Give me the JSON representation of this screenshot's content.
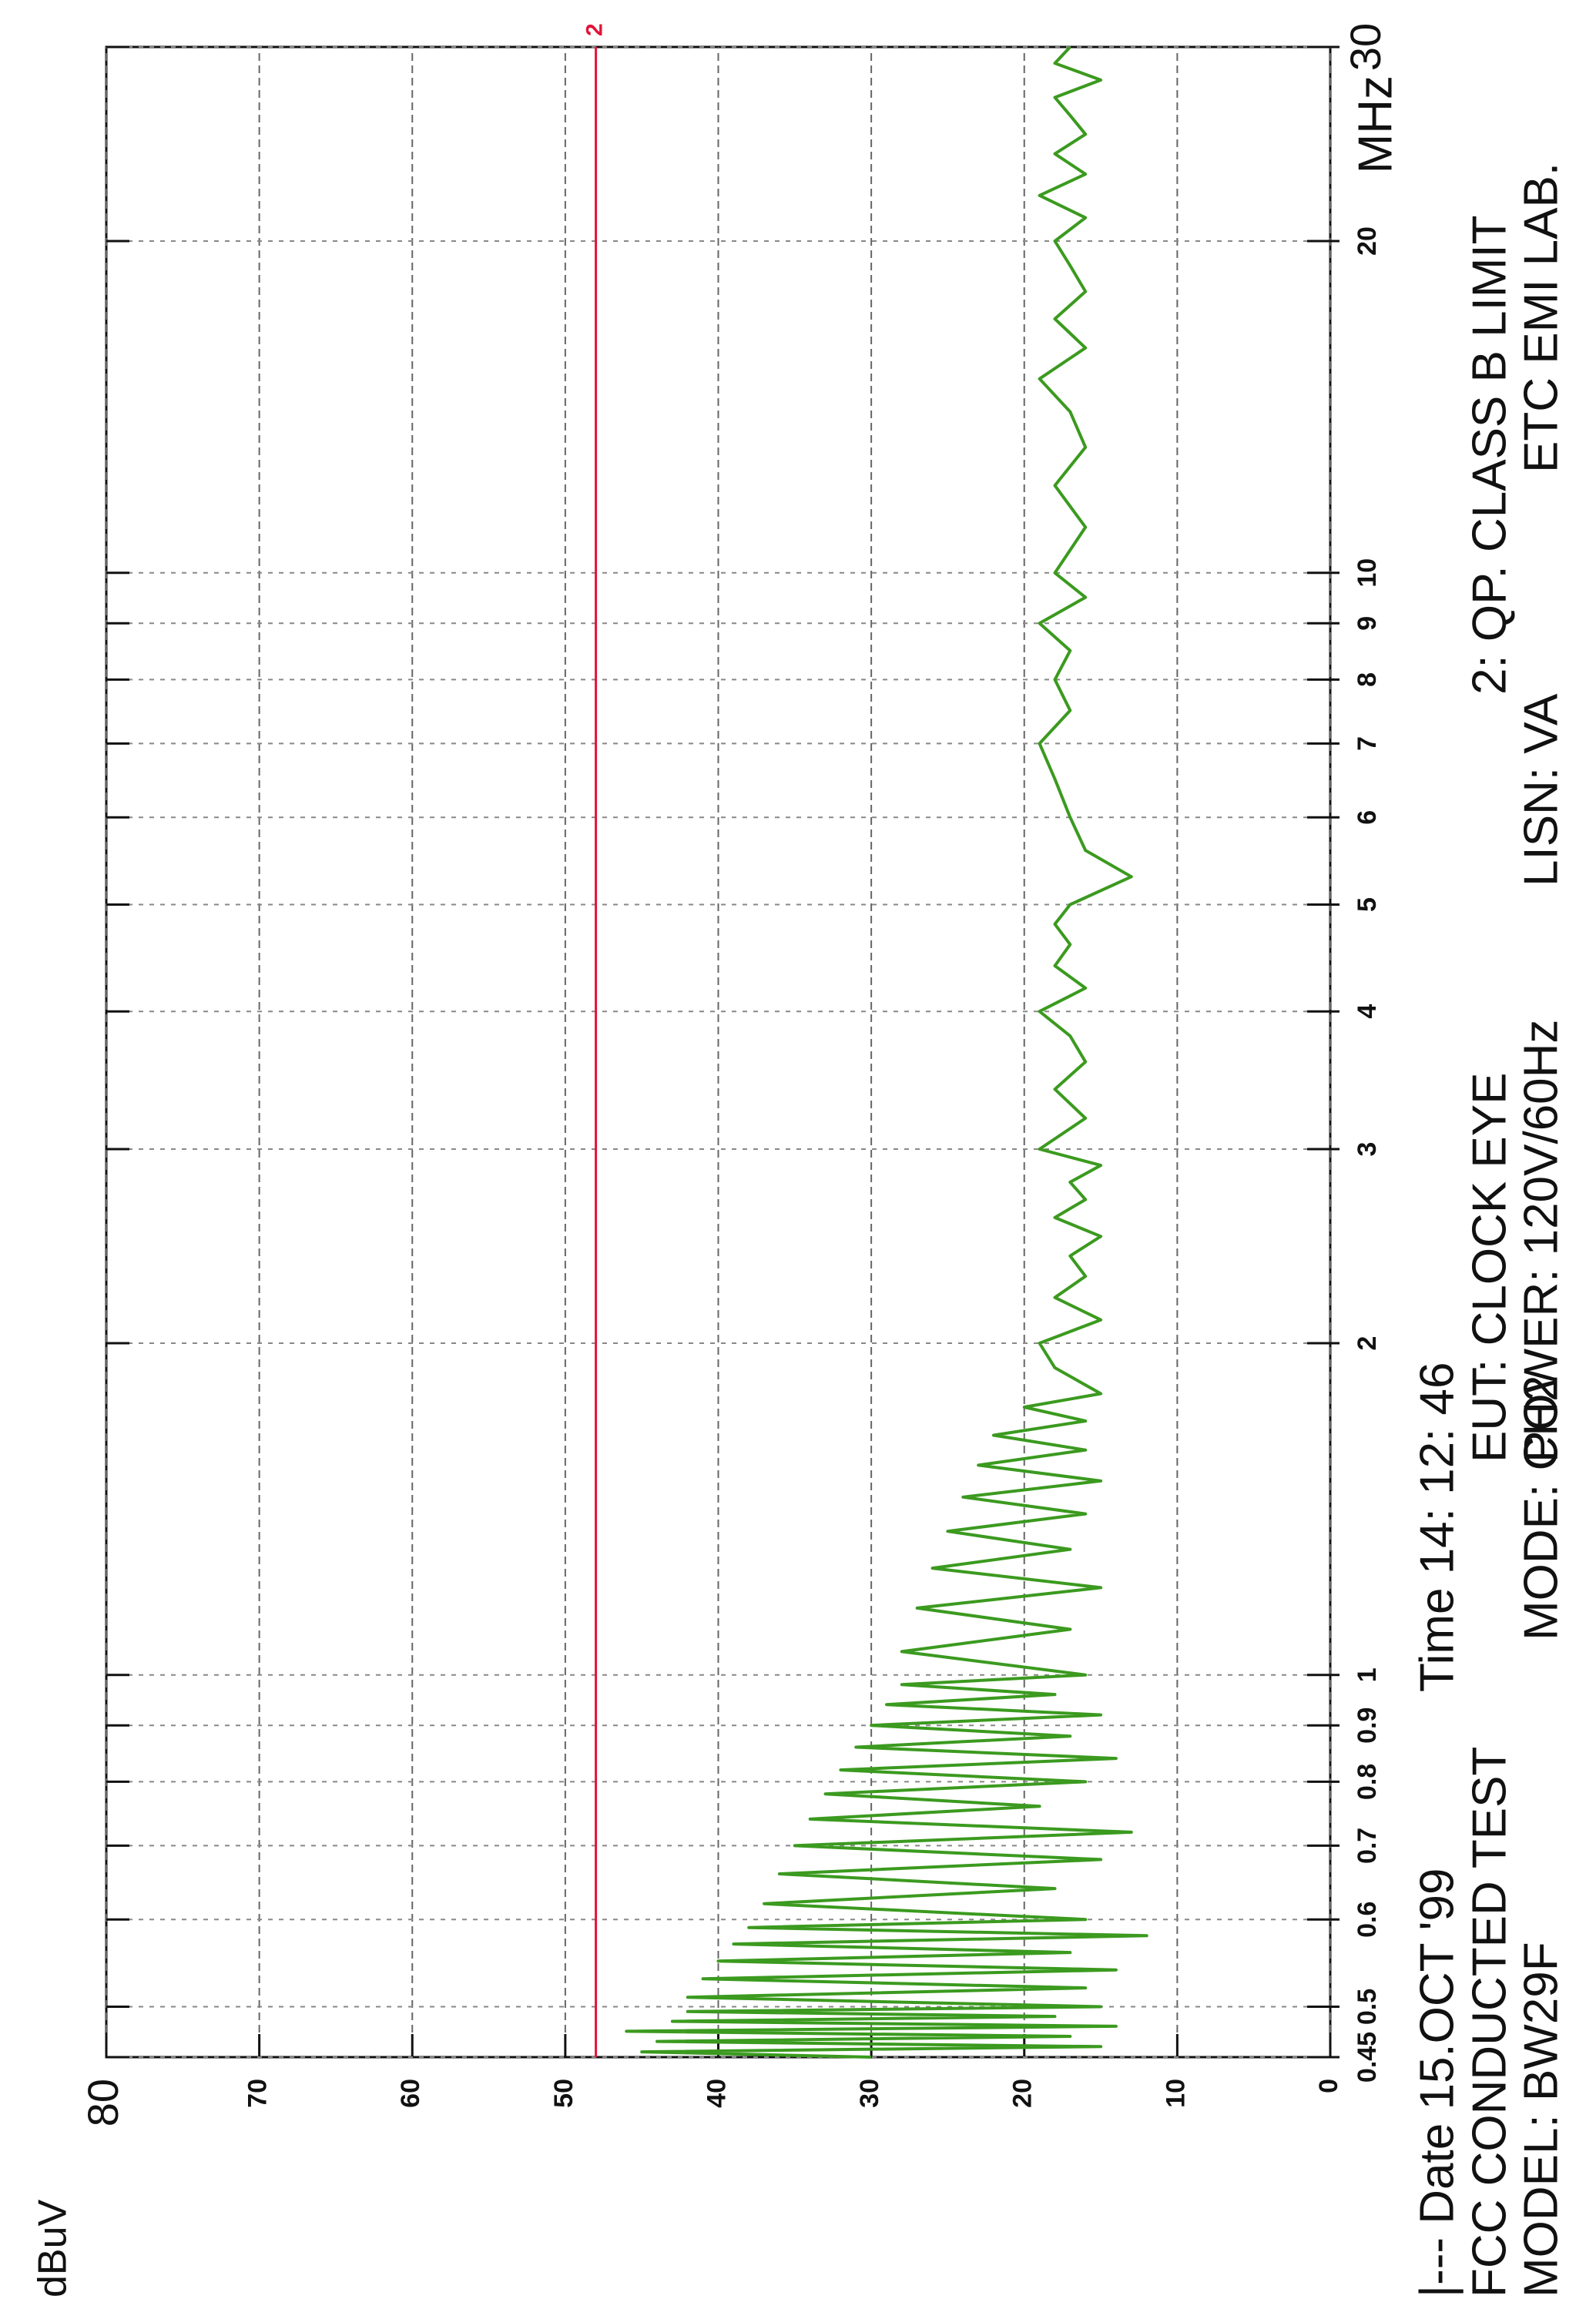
{
  "chart_data": {
    "type": "line",
    "y_label": "dBuV",
    "x_unit": "MHz",
    "log_x": true,
    "grid": true,
    "xlim": [
      0.45,
      30
    ],
    "xticks": [
      0.45,
      0.5,
      0.6,
      0.7,
      0.8,
      0.9,
      1,
      2,
      3,
      4,
      5,
      6,
      7,
      8,
      9,
      10,
      20,
      30
    ],
    "ylim": [
      0,
      80
    ],
    "yticks": [
      0,
      10,
      20,
      30,
      40,
      50,
      60,
      70,
      80
    ],
    "limit_line": {
      "name": "2",
      "value": 48,
      "color": "#e0143a"
    },
    "x": [
      0.45,
      0.455,
      0.46,
      0.465,
      0.47,
      0.475,
      0.48,
      0.485,
      0.49,
      0.495,
      0.5,
      0.51,
      0.52,
      0.53,
      0.54,
      0.55,
      0.56,
      0.57,
      0.58,
      0.59,
      0.6,
      0.62,
      0.64,
      0.66,
      0.68,
      0.7,
      0.72,
      0.74,
      0.76,
      0.78,
      0.8,
      0.82,
      0.84,
      0.86,
      0.88,
      0.9,
      0.92,
      0.94,
      0.96,
      0.98,
      1.0,
      1.05,
      1.1,
      1.15,
      1.2,
      1.25,
      1.3,
      1.35,
      1.4,
      1.45,
      1.5,
      1.55,
      1.6,
      1.65,
      1.7,
      1.75,
      1.8,
      1.9,
      2.0,
      2.1,
      2.2,
      2.3,
      2.4,
      2.5,
      2.6,
      2.7,
      2.8,
      2.9,
      3.0,
      3.2,
      3.4,
      3.6,
      3.8,
      4.0,
      4.2,
      4.4,
      4.6,
      4.8,
      5.0,
      5.3,
      5.6,
      6.0,
      6.5,
      7.0,
      7.5,
      8.0,
      8.5,
      9.0,
      9.5,
      10,
      11,
      12,
      13,
      14,
      15,
      16,
      17,
      18,
      19,
      20,
      21,
      22,
      23,
      24,
      25,
      26,
      27,
      28,
      29,
      30
    ],
    "series": [
      {
        "color": "#3b9a1f",
        "values": [
          30,
          45,
          15,
          44,
          17,
          46,
          14,
          43,
          18,
          42,
          15,
          42,
          16,
          41,
          14,
          40,
          17,
          39,
          12,
          38,
          16,
          37,
          18,
          36,
          15,
          35,
          13,
          34,
          19,
          33,
          16,
          32,
          14,
          31,
          17,
          30,
          15,
          29,
          18,
          28,
          16,
          28,
          17,
          27,
          15,
          26,
          17,
          25,
          16,
          24,
          15,
          23,
          16,
          22,
          16,
          20,
          15,
          18,
          19,
          15,
          18,
          16,
          17,
          15,
          18,
          16,
          17,
          15,
          19,
          16,
          18,
          16,
          17,
          19,
          16,
          18,
          17,
          18,
          17,
          13,
          16,
          17,
          18,
          19,
          17,
          18,
          17,
          19,
          16,
          18,
          16,
          18,
          16,
          17,
          19,
          16,
          18,
          16,
          17,
          18,
          16,
          19,
          16,
          18,
          16,
          17,
          18,
          15,
          18,
          17
        ]
      }
    ],
    "annotations": [
      "|--- Date 15.OCT '99",
      "Time 14: 12: 46",
      "FCC CONDUCTED TEST",
      "EUT:  CLOCK EYE",
      "2: QP.  CLASS B LIMIT",
      "MODEL:  BW29F",
      "MODE: CH2",
      "POWER: 120V/60Hz",
      "LISN:  VA",
      "ETC EMI LAB."
    ]
  }
}
